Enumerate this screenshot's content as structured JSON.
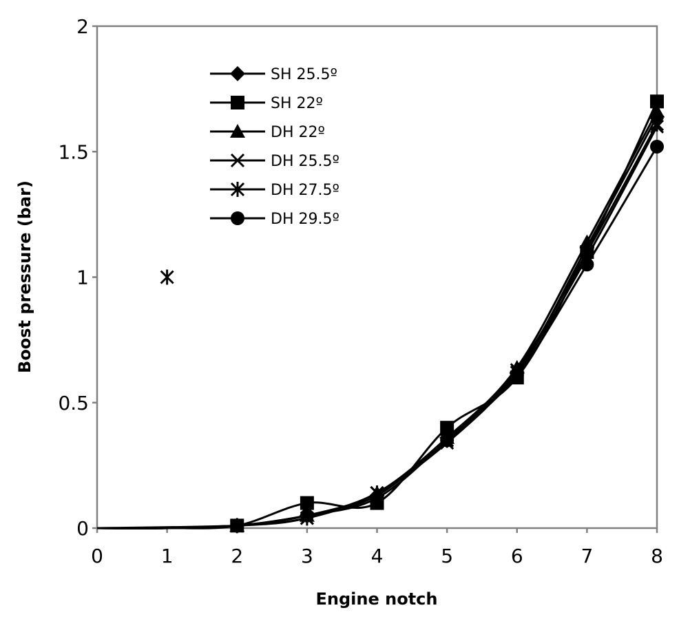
{
  "chart_data": {
    "type": "line",
    "title": "",
    "xlabel": "Engine notch",
    "ylabel": "Boost pressure (bar)",
    "xlim": [
      0,
      8
    ],
    "ylim": [
      0,
      2
    ],
    "xticks": [
      "0",
      "1",
      "2",
      "3",
      "4",
      "5",
      "6",
      "7",
      "8"
    ],
    "yticks": [
      "0",
      "0.5",
      "1",
      "1.5",
      "2"
    ],
    "grid": false,
    "legend_position": "top-left inside plot",
    "series": [
      {
        "name": "SH 25.5º",
        "marker": "diamond",
        "x": [
          0,
          1,
          2,
          3,
          4,
          5,
          6,
          7,
          8
        ],
        "y": [
          0,
          0,
          0.01,
          0.05,
          0.13,
          0.36,
          0.62,
          1.12,
          1.64
        ]
      },
      {
        "name": "SH 22º",
        "marker": "square",
        "x": [
          0,
          1,
          2,
          3,
          4,
          5,
          6,
          7,
          8
        ],
        "y": [
          0,
          0,
          0.01,
          0.1,
          0.1,
          0.4,
          0.6,
          1.1,
          1.7
        ]
      },
      {
        "name": "DH 22º",
        "marker": "triangle",
        "x": [
          0,
          1,
          2,
          3,
          4,
          5,
          6,
          7,
          8
        ],
        "y": [
          0,
          0,
          0.01,
          0.05,
          0.14,
          0.36,
          0.64,
          1.14,
          1.66
        ]
      },
      {
        "name": "DH 25.5º",
        "marker": "x",
        "x": [
          0,
          1,
          2,
          3,
          4,
          5,
          6,
          7,
          8
        ],
        "y": [
          0,
          0,
          0.01,
          0.04,
          0.14,
          0.34,
          0.62,
          1.08,
          1.6
        ]
      },
      {
        "name": "DH 27.5º",
        "marker": "star",
        "x": [
          0,
          1,
          2,
          3,
          4,
          5,
          6,
          7,
          8
        ],
        "y": [
          0,
          1.0,
          0.01,
          0.04,
          0.14,
          0.35,
          0.63,
          1.1,
          1.61
        ]
      },
      {
        "name": "DH 29.5º",
        "marker": "circle",
        "x": [
          0,
          1,
          2,
          3,
          4,
          5,
          6,
          7,
          8
        ],
        "y": [
          0,
          0,
          0.01,
          0.05,
          0.12,
          0.35,
          0.61,
          1.05,
          1.52
        ]
      }
    ],
    "colors": {
      "line": "#000000",
      "frame": "#808080"
    }
  }
}
